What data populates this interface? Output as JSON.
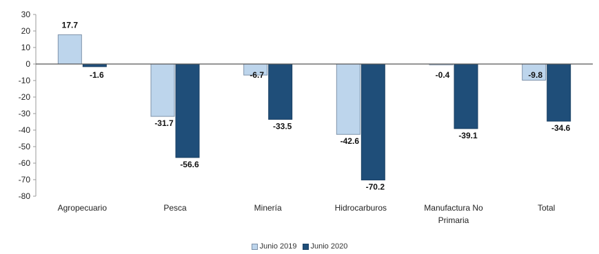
{
  "chart_data": {
    "type": "bar",
    "title": "",
    "xlabel": "",
    "ylabel": "",
    "ylim": [
      -80,
      30
    ],
    "yticks": [
      30,
      20,
      10,
      0,
      -10,
      -20,
      -30,
      -40,
      -50,
      -60,
      -70,
      -80
    ],
    "categories": [
      [
        "Agropecuario"
      ],
      [
        "Pesca"
      ],
      [
        "Minería"
      ],
      [
        "Hidrocarburos"
      ],
      [
        "Manufactura No",
        "Primaria"
      ],
      [
        "Total"
      ]
    ],
    "series": [
      {
        "name": "Junio 2019",
        "color": "#bdd5ec",
        "border": "#7f93aa",
        "values": [
          17.7,
          -31.7,
          -6.7,
          -42.6,
          -0.4,
          -9.8
        ],
        "labels": [
          "17.7",
          "-31.7",
          "-6.7",
          "-42.6",
          "-0.4",
          "-9.8"
        ]
      },
      {
        "name": "Junio 2020",
        "color": "#1f4e79",
        "border": "#1a3f63",
        "values": [
          -1.6,
          -56.6,
          -33.5,
          -70.2,
          -39.1,
          -34.6
        ],
        "labels": [
          "-1.6",
          "-56.6",
          "-33.5",
          "-70.2",
          "-39.1",
          "-34.6"
        ]
      }
    ],
    "grid": false,
    "legend": "bottom-center"
  }
}
